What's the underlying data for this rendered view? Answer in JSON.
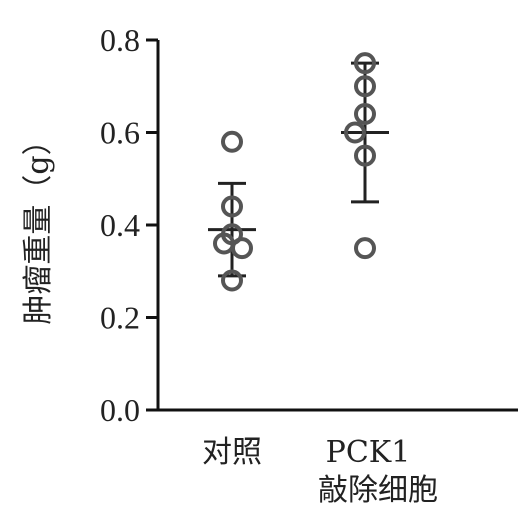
{
  "chart_data": {
    "type": "scatter",
    "ylabel": "肿瘤重量（g）",
    "ylim": [
      0,
      0.8
    ],
    "yticks": [
      "0.0",
      "0.2",
      "0.4",
      "0.6",
      "0.8"
    ],
    "categories": [
      "对照",
      "PCK1\n敲除细胞"
    ],
    "groups": [
      {
        "category": "对照",
        "points": [
          0.58,
          0.44,
          0.38,
          0.36,
          0.35,
          0.28
        ],
        "mean": 0.39,
        "error": 0.1
      },
      {
        "category": "PCK1 敲除细胞",
        "points": [
          0.75,
          0.7,
          0.64,
          0.6,
          0.55,
          0.35
        ],
        "mean": 0.6,
        "error": 0.15
      }
    ],
    "colors": {
      "points": "#555555",
      "error_bars": "#222222",
      "axis": "#111111"
    }
  }
}
